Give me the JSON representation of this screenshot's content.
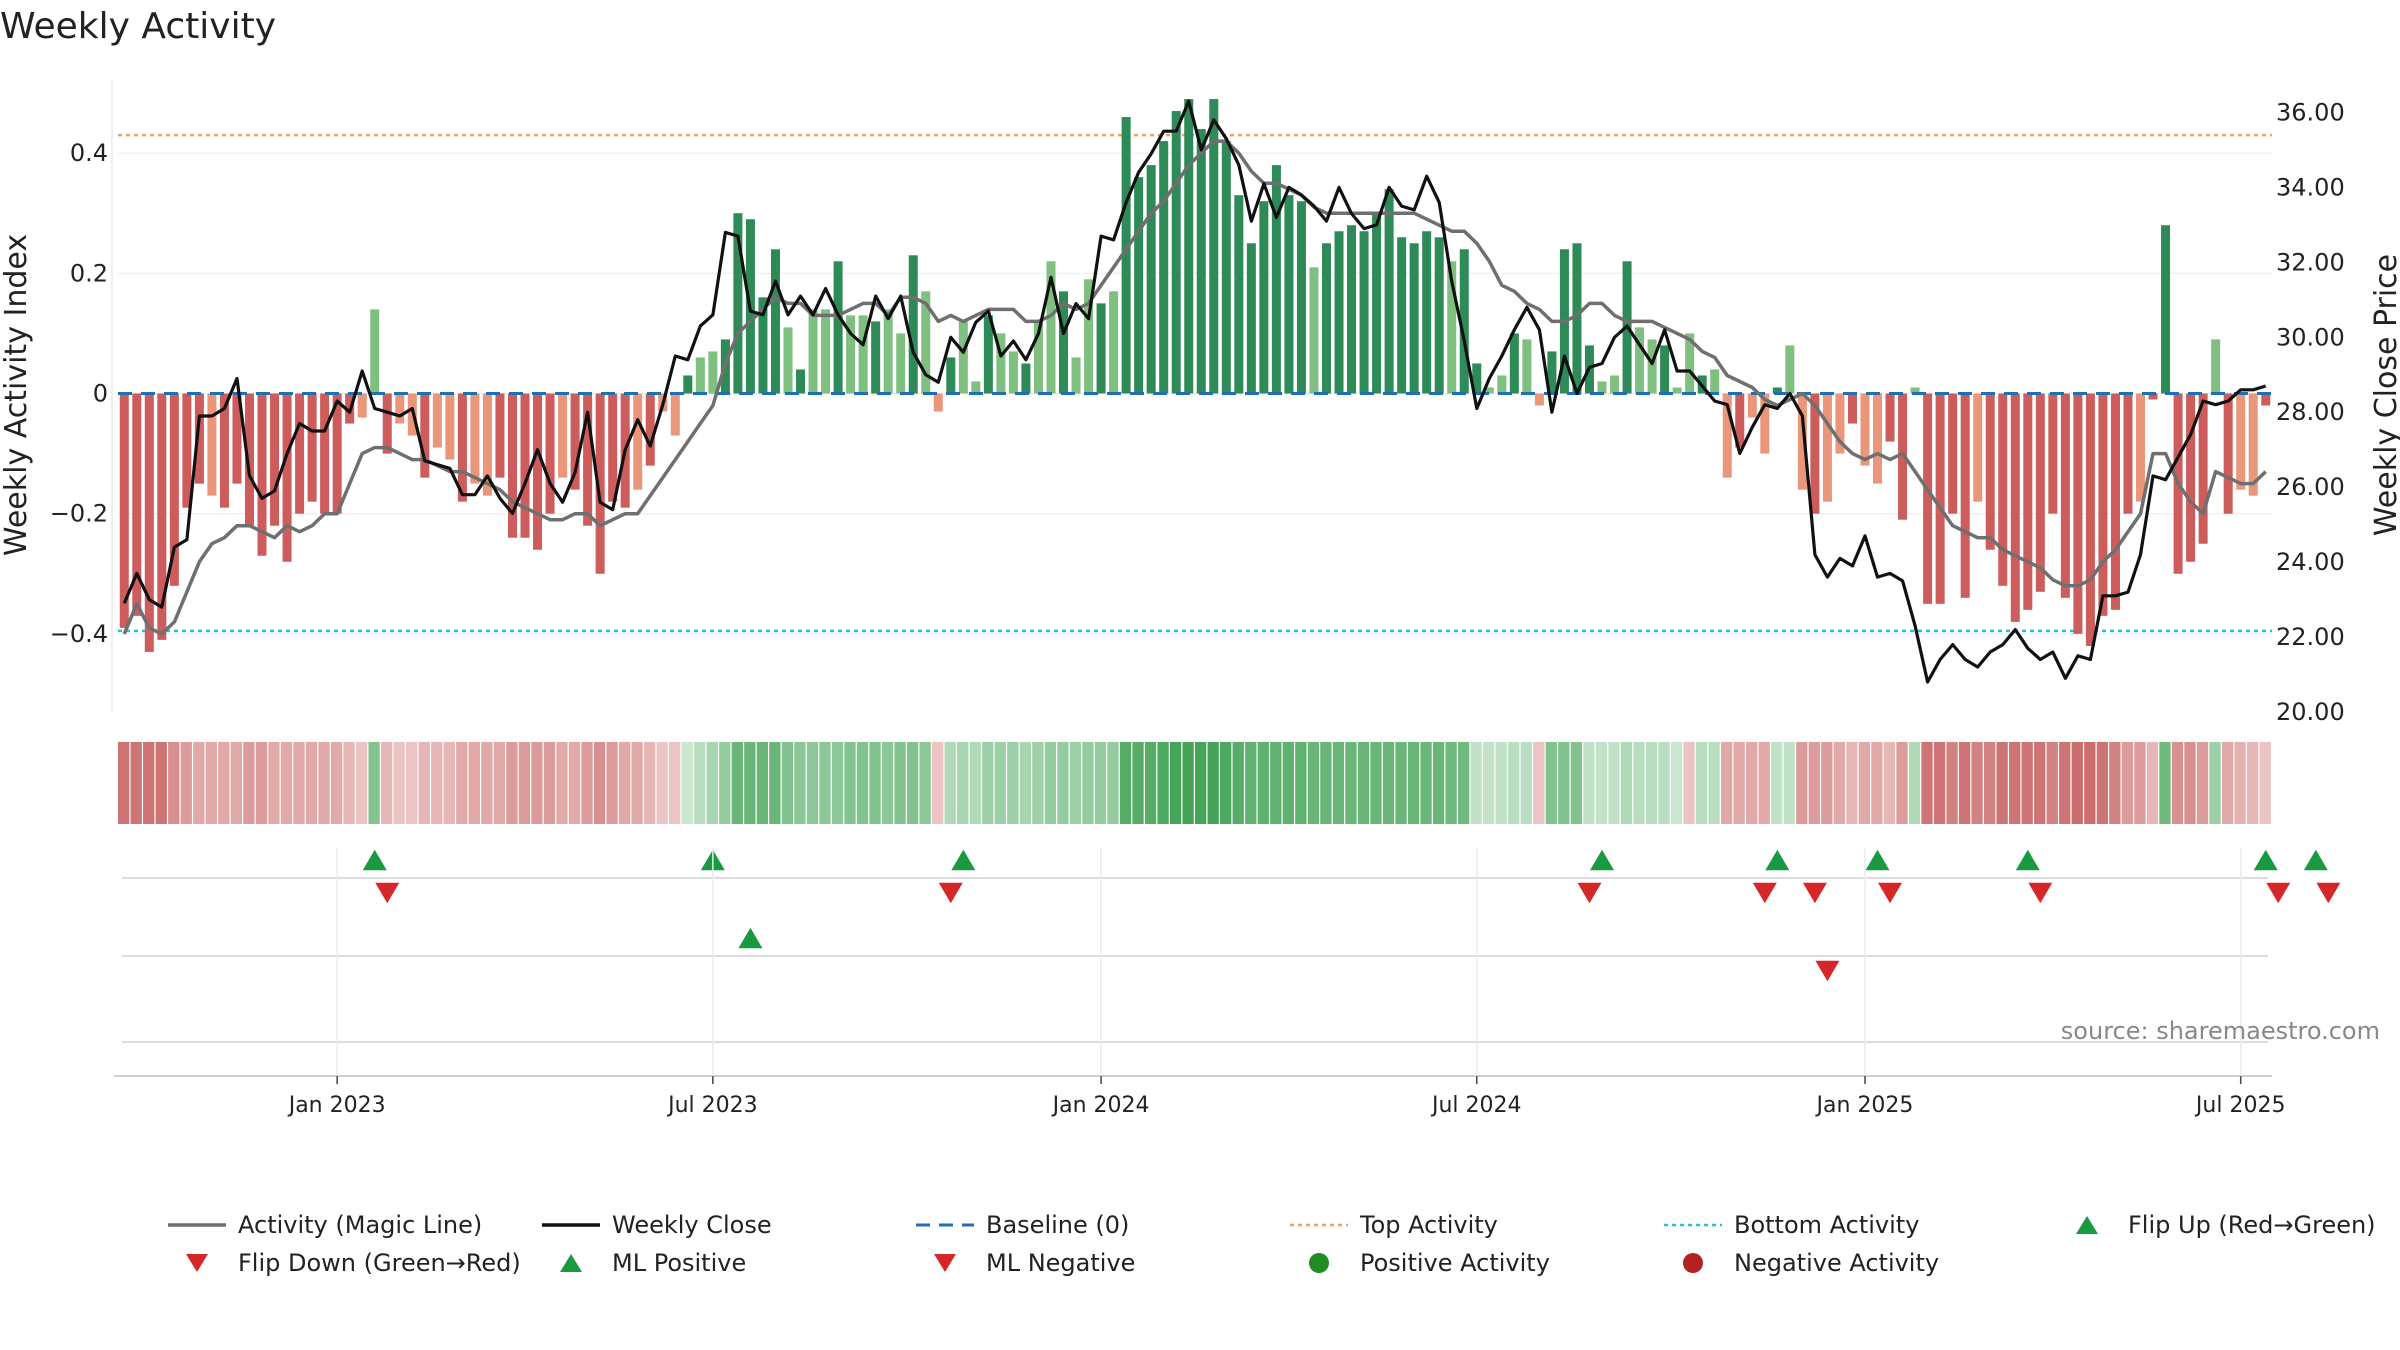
{
  "title": "Weekly Activity",
  "source_label": "source: sharemaestro.com",
  "colors": {
    "magic_line": "#6f6f6f",
    "close_line": "#111111",
    "baseline": "#1f6fb2",
    "top_line": "#f0a060",
    "bottom_line": "#22c3d6",
    "pos_strong": "#2e8b57",
    "pos_light": "#7fbf7f",
    "neg_strong": "#cd5c5c",
    "neg_light": "#e9967a",
    "marker_up": "#1a9a40",
    "marker_down": "#d62728",
    "dot_pos": "#228b22",
    "dot_neg": "#b22222"
  },
  "legend": [
    {
      "label": "Activity (Magic Line)",
      "symbol": "line",
      "color": "#6f6f6f"
    },
    {
      "label": "Weekly Close",
      "symbol": "line",
      "color": "#111111"
    },
    {
      "label": "Baseline (0)",
      "symbol": "dash",
      "color": "#1f6fb2"
    },
    {
      "label": "Top Activity",
      "symbol": "dot-line",
      "color": "#f0a060"
    },
    {
      "label": "Bottom Activity",
      "symbol": "dot-line",
      "color": "#22c3d6"
    },
    {
      "label": "Flip Up (Red→Green)",
      "symbol": "tri-up",
      "color": "#1a9a40"
    },
    {
      "label": "Flip Down (Green→Red)",
      "symbol": "tri-down",
      "color": "#d62728"
    },
    {
      "label": "ML Positive",
      "symbol": "tri-up",
      "color": "#1a9a40"
    },
    {
      "label": "ML Negative",
      "symbol": "tri-down",
      "color": "#d62728"
    },
    {
      "label": "Positive Activity",
      "symbol": "circle",
      "color": "#228b22"
    },
    {
      "label": "Negative Activity",
      "symbol": "circle",
      "color": "#b22222"
    }
  ],
  "chart_data": {
    "type": "bar",
    "start_date": "2022-10-03",
    "ylabel_left": "Weekly Activity Index",
    "ylabel_right": "Weekly Close Price",
    "ylim_left": [
      -0.53,
      0.53
    ],
    "ylim_right": [
      20.0,
      37.0
    ],
    "yticks_left": [
      {
        "value": 0.4,
        "label": "0.4"
      },
      {
        "value": 0.2,
        "label": "0.2"
      },
      {
        "value": 0.0,
        "label": "0"
      },
      {
        "value": -0.2,
        "label": "−0.2"
      },
      {
        "value": -0.4,
        "label": "−0.4"
      }
    ],
    "yticks_right": [
      {
        "value": 36,
        "label": "36.00"
      },
      {
        "value": 34,
        "label": "34.00"
      },
      {
        "value": 32,
        "label": "32.00"
      },
      {
        "value": 30,
        "label": "30.00"
      },
      {
        "value": 28,
        "label": "28.00"
      },
      {
        "value": 26,
        "label": "26.00"
      },
      {
        "value": 24,
        "label": "24.00"
      },
      {
        "value": 22,
        "label": "22.00"
      },
      {
        "value": 20,
        "label": "20.00"
      }
    ],
    "xticks": [
      {
        "week": 17,
        "label": "Jan 2023"
      },
      {
        "week": 47,
        "label": "Jul 2023"
      },
      {
        "week": 78,
        "label": "Jan 2024"
      },
      {
        "week": 108,
        "label": "Jul 2024"
      },
      {
        "week": 139,
        "label": "Jan 2025"
      },
      {
        "week": 169,
        "label": "Jul 2025"
      }
    ],
    "top_activity": 0.43,
    "bottom_activity": -0.395,
    "baseline": 0,
    "activity": [
      -0.39,
      -0.37,
      -0.43,
      -0.41,
      -0.32,
      -0.19,
      -0.15,
      -0.17,
      -0.19,
      -0.15,
      -0.22,
      -0.27,
      -0.22,
      -0.28,
      -0.2,
      -0.18,
      -0.2,
      -0.2,
      -0.05,
      -0.04,
      0.14,
      -0.1,
      -0.05,
      -0.07,
      -0.14,
      -0.09,
      -0.11,
      -0.18,
      -0.15,
      -0.17,
      -0.14,
      -0.24,
      -0.24,
      -0.26,
      -0.2,
      -0.14,
      -0.16,
      -0.22,
      -0.3,
      -0.18,
      -0.19,
      -0.16,
      -0.12,
      -0.03,
      -0.07,
      0.03,
      0.06,
      0.07,
      0.09,
      0.3,
      0.29,
      0.16,
      0.24,
      0.11,
      0.04,
      0.14,
      0.14,
      0.22,
      0.13,
      0.13,
      0.12,
      0.14,
      0.1,
      0.23,
      0.17,
      -0.03,
      0.06,
      0.12,
      0.02,
      0.13,
      0.1,
      0.07,
      0.05,
      0.12,
      0.22,
      0.17,
      0.06,
      0.19,
      0.15,
      0.17,
      0.46,
      0.36,
      0.38,
      0.42,
      0.47,
      0.49,
      0.44,
      0.49,
      0.42,
      0.33,
      0.25,
      0.32,
      0.38,
      0.33,
      0.32,
      0.21,
      0.25,
      0.27,
      0.28,
      0.27,
      0.3,
      0.34,
      0.26,
      0.25,
      0.27,
      0.26,
      0.22,
      0.24,
      0.05,
      0.01,
      0.03,
      0.1,
      0.09,
      -0.02,
      0.07,
      0.24,
      0.25,
      0.08,
      0.02,
      0.03,
      0.22,
      0.11,
      0.09,
      0.08,
      0.01,
      0.1,
      0.03,
      0.04,
      -0.14,
      -0.09,
      -0.04,
      -0.1,
      0.01,
      0.08,
      -0.16,
      -0.2,
      -0.18,
      -0.1,
      -0.05,
      -0.12,
      -0.15,
      -0.08,
      -0.21,
      0.01,
      -0.35,
      -0.35,
      -0.2,
      -0.34,
      -0.18,
      -0.26,
      -0.32,
      -0.38,
      -0.36,
      -0.33,
      -0.2,
      -0.34,
      -0.4,
      -0.42,
      -0.37,
      -0.36,
      -0.2,
      -0.18,
      -0.01,
      0.28,
      -0.3,
      -0.28,
      -0.25,
      0.09,
      -0.2,
      -0.16,
      -0.17,
      -0.02
    ],
    "close": [
      22.9,
      23.7,
      23.0,
      22.8,
      24.4,
      24.6,
      27.9,
      27.9,
      28.1,
      28.9,
      26.3,
      25.7,
      25.9,
      26.9,
      27.7,
      27.5,
      27.5,
      28.3,
      28.0,
      29.1,
      28.1,
      28.0,
      27.9,
      28.1,
      26.7,
      26.6,
      26.5,
      25.8,
      25.8,
      26.3,
      25.7,
      25.3,
      26.1,
      27.0,
      26.1,
      25.6,
      26.4,
      28.0,
      25.6,
      25.4,
      27.0,
      27.8,
      27.1,
      28.2,
      29.5,
      29.4,
      30.3,
      30.6,
      32.8,
      32.7,
      30.7,
      30.6,
      31.5,
      30.6,
      31.1,
      30.6,
      31.3,
      30.6,
      30.1,
      29.8,
      31.1,
      30.5,
      31.1,
      29.6,
      29.0,
      28.8,
      30.0,
      29.6,
      30.4,
      30.7,
      29.5,
      29.9,
      29.4,
      30.1,
      31.6,
      30.1,
      30.9,
      30.5,
      32.7,
      32.6,
      33.6,
      34.4,
      34.9,
      35.5,
      35.5,
      36.3,
      35.0,
      35.8,
      35.3,
      34.6,
      33.1,
      34.1,
      33.2,
      34.0,
      33.8,
      33.5,
      33.1,
      34.0,
      33.3,
      32.9,
      33.0,
      34.0,
      33.5,
      33.4,
      34.3,
      33.6,
      31.5,
      29.9,
      28.1,
      28.9,
      29.5,
      30.2,
      30.8,
      30.2,
      28.0,
      29.5,
      28.5,
      29.2,
      29.3,
      30.0,
      30.3,
      29.8,
      29.3,
      30.2,
      29.1,
      29.1,
      28.7,
      28.3,
      28.2,
      26.9,
      27.6,
      28.2,
      28.1,
      28.5,
      27.9,
      24.2,
      23.6,
      24.1,
      23.9,
      24.7,
      23.6,
      23.7,
      23.5,
      22.3,
      20.8,
      21.4,
      21.8,
      21.4,
      21.2,
      21.6,
      21.8,
      22.2,
      21.7,
      21.4,
      21.6,
      20.9,
      21.5,
      21.4,
      23.1,
      23.1,
      23.2,
      24.2,
      26.3,
      26.2,
      26.8,
      27.4,
      28.3,
      28.2,
      28.3,
      28.6,
      28.6,
      28.7
    ],
    "magic": [
      -0.4,
      -0.35,
      -0.39,
      -0.4,
      -0.38,
      -0.33,
      -0.28,
      -0.25,
      -0.24,
      -0.22,
      -0.22,
      -0.23,
      -0.24,
      -0.22,
      -0.23,
      -0.22,
      -0.2,
      -0.2,
      -0.15,
      -0.1,
      -0.09,
      -0.09,
      -0.1,
      -0.11,
      -0.11,
      -0.12,
      -0.13,
      -0.13,
      -0.14,
      -0.15,
      -0.16,
      -0.18,
      -0.19,
      -0.2,
      -0.21,
      -0.21,
      -0.2,
      -0.2,
      -0.22,
      -0.21,
      -0.2,
      -0.2,
      -0.17,
      -0.14,
      -0.11,
      -0.08,
      -0.05,
      -0.02,
      0.05,
      0.1,
      0.12,
      0.14,
      0.16,
      0.15,
      0.15,
      0.13,
      0.13,
      0.13,
      0.14,
      0.15,
      0.15,
      0.13,
      0.16,
      0.16,
      0.15,
      0.12,
      0.13,
      0.12,
      0.13,
      0.14,
      0.14,
      0.14,
      0.12,
      0.12,
      0.13,
      0.15,
      0.14,
      0.15,
      0.18,
      0.21,
      0.24,
      0.27,
      0.3,
      0.32,
      0.35,
      0.38,
      0.4,
      0.42,
      0.42,
      0.4,
      0.37,
      0.35,
      0.35,
      0.34,
      0.33,
      0.31,
      0.3,
      0.3,
      0.3,
      0.3,
      0.3,
      0.3,
      0.3,
      0.3,
      0.29,
      0.28,
      0.27,
      0.27,
      0.25,
      0.22,
      0.18,
      0.17,
      0.15,
      0.14,
      0.12,
      0.12,
      0.13,
      0.15,
      0.15,
      0.13,
      0.12,
      0.12,
      0.12,
      0.11,
      0.1,
      0.09,
      0.07,
      0.06,
      0.03,
      0.02,
      0.01,
      -0.01,
      -0.02,
      -0.01,
      0.0,
      -0.02,
      -0.05,
      -0.08,
      -0.1,
      -0.11,
      -0.1,
      -0.11,
      -0.1,
      -0.13,
      -0.16,
      -0.19,
      -0.22,
      -0.23,
      -0.24,
      -0.24,
      -0.26,
      -0.27,
      -0.28,
      -0.29,
      -0.31,
      -0.32,
      -0.32,
      -0.31,
      -0.28,
      -0.26,
      -0.23,
      -0.2,
      -0.1,
      -0.1,
      -0.15,
      -0.18,
      -0.2,
      -0.13,
      -0.14,
      -0.15,
      -0.15,
      -0.13
    ],
    "strip_levels": [
      -0.8,
      -0.8,
      -0.8,
      -0.8,
      -0.6,
      -0.5,
      -0.4,
      -0.4,
      -0.4,
      -0.4,
      -0.5,
      -0.5,
      -0.4,
      -0.4,
      -0.4,
      -0.4,
      -0.4,
      -0.4,
      -0.3,
      -0.2,
      0.6,
      -0.3,
      -0.2,
      -0.2,
      -0.3,
      -0.3,
      -0.3,
      -0.4,
      -0.4,
      -0.4,
      -0.4,
      -0.5,
      -0.5,
      -0.5,
      -0.5,
      -0.4,
      -0.4,
      -0.5,
      -0.6,
      -0.5,
      -0.4,
      -0.4,
      -0.3,
      -0.2,
      -0.2,
      0.2,
      0.3,
      0.4,
      0.5,
      0.75,
      0.75,
      0.75,
      0.75,
      0.6,
      0.55,
      0.55,
      0.55,
      0.55,
      0.6,
      0.6,
      0.6,
      0.55,
      0.6,
      0.6,
      0.55,
      -0.2,
      0.35,
      0.4,
      0.35,
      0.45,
      0.45,
      0.45,
      0.4,
      0.45,
      0.5,
      0.5,
      0.45,
      0.5,
      0.5,
      0.5,
      0.85,
      0.85,
      0.85,
      0.9,
      0.95,
      0.95,
      0.95,
      0.95,
      0.9,
      0.85,
      0.8,
      0.8,
      0.8,
      0.8,
      0.8,
      0.75,
      0.75,
      0.75,
      0.75,
      0.75,
      0.75,
      0.75,
      0.75,
      0.75,
      0.75,
      0.75,
      0.7,
      0.7,
      0.25,
      0.25,
      0.25,
      0.3,
      0.3,
      -0.2,
      0.6,
      0.6,
      0.6,
      0.25,
      0.25,
      0.25,
      0.35,
      0.3,
      0.3,
      0.3,
      0.2,
      -0.2,
      0.3,
      0.3,
      -0.4,
      -0.4,
      -0.4,
      -0.4,
      0.25,
      0.25,
      -0.5,
      -0.5,
      -0.5,
      -0.4,
      -0.3,
      -0.4,
      -0.4,
      -0.3,
      -0.5,
      0.35,
      -0.8,
      -0.8,
      -0.7,
      -0.8,
      -0.7,
      -0.7,
      -0.8,
      -0.8,
      -0.8,
      -0.8,
      -0.7,
      -0.8,
      -0.85,
      -0.85,
      -0.8,
      -0.7,
      -0.5,
      -0.5,
      -0.3,
      0.7,
      -0.6,
      -0.6,
      -0.5,
      0.45,
      -0.4,
      -0.35,
      -0.3,
      -0.2
    ],
    "flip_up_weeks": [
      20,
      47,
      67,
      118,
      132,
      140,
      152,
      171,
      175
    ],
    "flip_down_weeks": [
      21,
      66,
      117,
      131,
      135,
      141,
      153,
      172,
      176
    ],
    "ml_positive_weeks": [
      50
    ],
    "ml_negative_weeks": [
      136
    ]
  }
}
